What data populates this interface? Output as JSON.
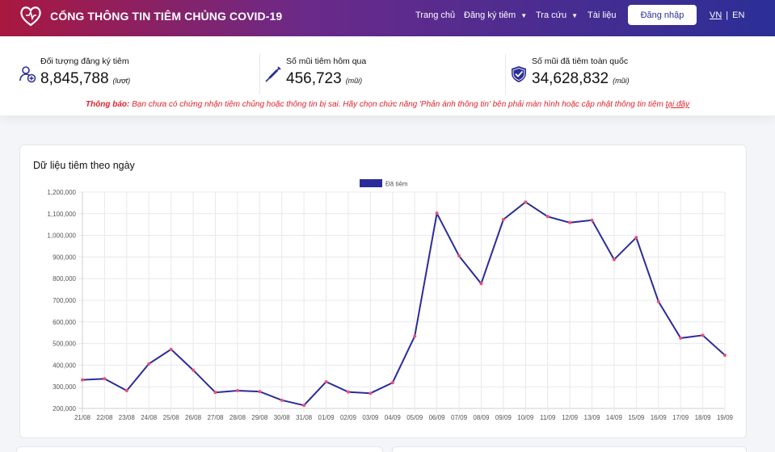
{
  "header": {
    "title": "CỔNG THÔNG TIN TIÊM CHỦNG COVID-19",
    "nav": {
      "home": "Trang chủ",
      "register": "Đăng ký tiêm",
      "lookup": "Tra cứu",
      "docs": "Tài liệu"
    },
    "login": "Đăng nhập",
    "lang_vn": "VN",
    "lang_sep": "|",
    "lang_en": "EN"
  },
  "stats": [
    {
      "label": "Đối tượng đăng ký tiêm",
      "value": "8,845,788",
      "unit": "(lượt)",
      "icon": "user-add-icon"
    },
    {
      "label": "Số mũi tiêm hôm qua",
      "value": "456,723",
      "unit": "(mũi)",
      "icon": "syringe-icon"
    },
    {
      "label": "Số mũi đã tiêm toàn quốc",
      "value": "34,628,832",
      "unit": "(mũi)",
      "icon": "shield-check-icon"
    }
  ],
  "notice": {
    "prefix": "Thông báo:",
    "text": " Bạn chưa có chứng nhận tiêm chủng hoặc thông tin bị sai. Hãy chọn chức năng 'Phản ánh thông tin' bên phải màn hình hoặc cập nhật thông tin tiêm ",
    "link": "tại đây"
  },
  "chart_card": {
    "title": "Dữ liệu tiêm theo ngày"
  },
  "colors": {
    "line": "#2b2c9a",
    "point": "#f0506e",
    "brand_start": "#a9183f",
    "brand_end": "#2b2f97",
    "notice": "#e0232d"
  },
  "chart_data": {
    "type": "line",
    "title": "Dữ liệu tiêm theo ngày",
    "legend_position": "top",
    "grid": true,
    "ylim": [
      200000,
      1200000
    ],
    "y_ticks": [
      "200,000",
      "300,000",
      "400,000",
      "500,000",
      "600,000",
      "700,000",
      "800,000",
      "900,000",
      "1,000,000",
      "1,100,000",
      "1,200,000"
    ],
    "categories": [
      "21/08",
      "22/08",
      "23/08",
      "24/08",
      "25/08",
      "26/08",
      "27/08",
      "28/08",
      "29/08",
      "30/08",
      "31/08",
      "01/09",
      "02/09",
      "03/09",
      "04/09",
      "05/09",
      "06/09",
      "07/09",
      "08/09",
      "09/09",
      "10/09",
      "11/09",
      "12/09",
      "13/09",
      "14/09",
      "15/09",
      "16/09",
      "17/09",
      "18/09",
      "19/09"
    ],
    "series": [
      {
        "name": "Đã tiêm",
        "values": [
          332000,
          337000,
          282000,
          406000,
          473000,
          377000,
          274000,
          282000,
          278000,
          238000,
          214000,
          323000,
          276000,
          270000,
          319000,
          534000,
          1102000,
          905000,
          777000,
          1073000,
          1154000,
          1087000,
          1059000,
          1070000,
          888000,
          990000,
          694000,
          525000,
          538000,
          446000
        ]
      }
    ]
  }
}
